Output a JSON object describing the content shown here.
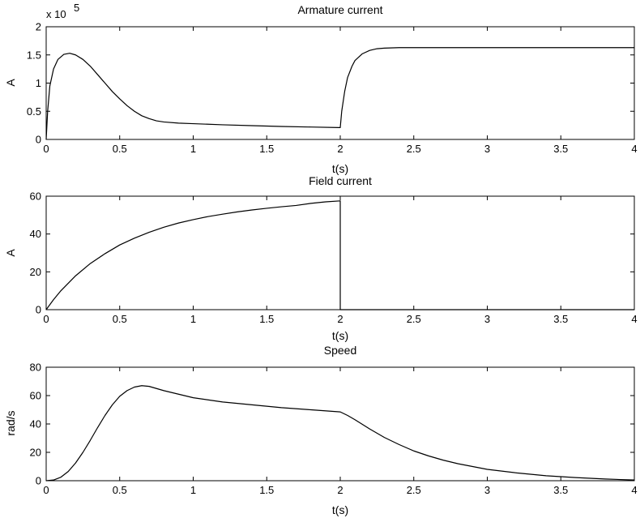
{
  "chart_data": [
    {
      "type": "line",
      "title": "Armature current",
      "xlabel": "t(s)",
      "ylabel": "A",
      "exponent_label": "x 10",
      "exponent_power": "5",
      "xlim": [
        0,
        4
      ],
      "ylim": [
        0,
        2
      ],
      "xticks": [
        "0",
        "0.5",
        "1",
        "1.5",
        "2",
        "2.5",
        "3",
        "3.5",
        "4"
      ],
      "yticks": [
        "0",
        "0.5",
        "1",
        "1.5",
        "2"
      ],
      "grid": false,
      "series": [
        {
          "color": "#000000",
          "x": [
            0,
            0.01,
            0.025,
            0.05,
            0.08,
            0.12,
            0.16,
            0.2,
            0.25,
            0.3,
            0.35,
            0.4,
            0.45,
            0.5,
            0.55,
            0.6,
            0.65,
            0.7,
            0.75,
            0.8,
            0.9,
            1.0,
            1.2,
            1.4,
            1.6,
            1.8,
            1.99,
            2.0,
            2.01,
            2.03,
            2.05,
            2.08,
            2.1,
            2.15,
            2.2,
            2.25,
            2.3,
            2.4,
            2.6,
            3.0,
            3.5,
            4.0
          ],
          "y": [
            0.0,
            0.5,
            0.95,
            1.25,
            1.42,
            1.51,
            1.53,
            1.5,
            1.42,
            1.3,
            1.15,
            1.0,
            0.85,
            0.72,
            0.6,
            0.5,
            0.42,
            0.37,
            0.33,
            0.31,
            0.29,
            0.28,
            0.26,
            0.245,
            0.23,
            0.22,
            0.21,
            0.21,
            0.5,
            0.85,
            1.1,
            1.3,
            1.4,
            1.52,
            1.58,
            1.61,
            1.62,
            1.63,
            1.63,
            1.63,
            1.63,
            1.63
          ]
        }
      ]
    },
    {
      "type": "line",
      "title": "Field current",
      "xlabel": "t(s)",
      "ylabel": "A",
      "xlim": [
        0,
        4
      ],
      "ylim": [
        0,
        60
      ],
      "xticks": [
        "0",
        "0.5",
        "1",
        "1.5",
        "2",
        "2.5",
        "3",
        "3.5",
        "4"
      ],
      "yticks": [
        "0",
        "20",
        "40",
        "60"
      ],
      "grid": false,
      "series": [
        {
          "color": "#000000",
          "x": [
            0,
            0.05,
            0.1,
            0.2,
            0.3,
            0.4,
            0.5,
            0.6,
            0.7,
            0.8,
            0.9,
            1.0,
            1.1,
            1.2,
            1.3,
            1.4,
            1.5,
            1.6,
            1.7,
            1.8,
            1.9,
            2.0,
            2.0,
            2.2,
            2.5,
            3.0,
            3.5,
            4.0
          ],
          "y": [
            0,
            5.3,
            10.0,
            17.9,
            24.4,
            29.6,
            34.2,
            37.8,
            40.9,
            43.6,
            45.8,
            47.6,
            49.2,
            50.5,
            51.7,
            52.7,
            53.6,
            54.4,
            55.1,
            56.2,
            57.0,
            57.5,
            0,
            0,
            0,
            0,
            0,
            0
          ]
        }
      ]
    },
    {
      "type": "line",
      "title": "Speed",
      "xlabel": "t(s)",
      "ylabel": "rad/s",
      "xlim": [
        0,
        4
      ],
      "ylim": [
        0,
        80
      ],
      "xticks": [
        "0",
        "0.5",
        "1",
        "1.5",
        "2",
        "2.5",
        "3",
        "3.5",
        "4"
      ],
      "yticks": [
        "0",
        "20",
        "40",
        "60",
        "80"
      ],
      "grid": false,
      "series": [
        {
          "color": "#000000",
          "x": [
            0,
            0.05,
            0.1,
            0.15,
            0.2,
            0.25,
            0.3,
            0.35,
            0.4,
            0.45,
            0.5,
            0.55,
            0.6,
            0.65,
            0.7,
            0.75,
            0.8,
            0.9,
            1.0,
            1.1,
            1.2,
            1.4,
            1.6,
            1.8,
            2.0,
            2.05,
            2.1,
            2.2,
            2.3,
            2.4,
            2.5,
            2.6,
            2.7,
            2.8,
            3.0,
            3.2,
            3.4,
            3.6,
            3.8,
            4.0
          ],
          "y": [
            0,
            0.5,
            2.5,
            6.5,
            12.5,
            20.0,
            28.5,
            37.5,
            46.0,
            53.5,
            59.5,
            63.5,
            66.0,
            67.0,
            66.5,
            65.0,
            63.5,
            61.0,
            58.5,
            57.0,
            55.5,
            53.5,
            51.5,
            50.0,
            48.5,
            46.0,
            43.0,
            36.5,
            30.5,
            25.5,
            21.0,
            17.5,
            14.5,
            12.0,
            8.0,
            5.5,
            3.5,
            2.2,
            1.2,
            0.5
          ]
        }
      ]
    }
  ]
}
